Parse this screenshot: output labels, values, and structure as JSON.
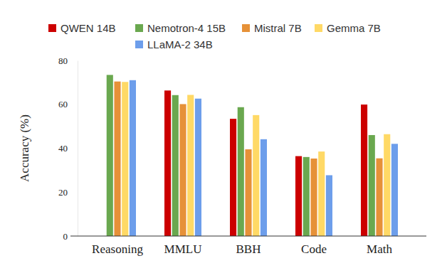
{
  "chart_data": {
    "type": "bar",
    "y_label": "Accuracy (%)",
    "categories": [
      "Reasoning",
      "MMLU",
      "BBH",
      "Code",
      "Math"
    ],
    "series": [
      {
        "name": "QWEN 14B",
        "color": "#cc0000",
        "values": [
          0,
          66.3,
          53.4,
          36.4,
          59.9
        ]
      },
      {
        "name": "Nemotron-4 15B",
        "color": "#6aa84f",
        "values": [
          73.4,
          64.2,
          58.7,
          36.0,
          46.0
        ]
      },
      {
        "name": "Mistral 7B",
        "color": "#e69138",
        "values": [
          70.4,
          60.1,
          39.5,
          35.3,
          35.4
        ]
      },
      {
        "name": "Gemma 7B",
        "color": "#ffd966",
        "values": [
          70.2,
          64.3,
          55.1,
          38.5,
          46.4
        ]
      },
      {
        "name": "LLaMA-2 34B",
        "color": "#6d9eeb",
        "values": [
          71.0,
          62.6,
          44.1,
          27.7,
          42.0
        ]
      }
    ],
    "ylim": [
      0,
      80
    ],
    "yticks": [
      0,
      20,
      40,
      60,
      80
    ],
    "grid": false,
    "legend": "top"
  }
}
